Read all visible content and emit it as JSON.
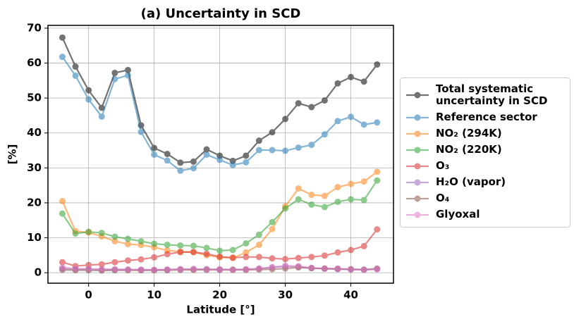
{
  "chart_data": {
    "type": "line",
    "title": "(a) Uncertainty in SCD",
    "xlabel": "Latitude [°]",
    "ylabel": "[%]",
    "x": [
      -4,
      -2,
      0,
      2,
      4,
      6,
      8,
      10,
      12,
      14,
      16,
      18,
      20,
      22,
      24,
      26,
      28,
      30,
      32,
      34,
      36,
      38,
      40,
      42,
      44
    ],
    "xlim": [
      -6.2,
      46.5
    ],
    "xticks": [
      0,
      10,
      20,
      30,
      40
    ],
    "ylim": [
      -3,
      70.8
    ],
    "yticks": [
      0,
      10,
      20,
      30,
      40,
      50,
      60,
      70
    ],
    "grid": true,
    "series": [
      {
        "name": "Total systematic uncertainty in SCD",
        "color": "#000000",
        "values": [
          67.3,
          59,
          52.2,
          47.2,
          57.2,
          58,
          42.2,
          35.7,
          34,
          31.5,
          31.8,
          35.3,
          33.5,
          32,
          33.5,
          37.8,
          40.2,
          44,
          48.5,
          47.4,
          49.3,
          54.2,
          56,
          54.7,
          59.6
        ]
      },
      {
        "name": "Reference sector",
        "color": "#1f77b4",
        "values": [
          61.8,
          56.4,
          49.6,
          44.7,
          55.4,
          56.5,
          40.3,
          33.8,
          32.1,
          29.2,
          29.9,
          33.8,
          32.3,
          30.8,
          31.6,
          35.1,
          35.1,
          34.9,
          35.8,
          36.6,
          39.6,
          43.4,
          44.6,
          42.4,
          43
        ]
      },
      {
        "name": "NO₂ (294K)",
        "color": "#ff7f0e",
        "values": [
          20.5,
          11.9,
          11.5,
          10.4,
          9,
          8.2,
          7.9,
          7.3,
          6.4,
          6,
          5.9,
          5,
          4.4,
          4.2,
          5.8,
          8,
          12.5,
          19,
          24.1,
          22.3,
          22,
          24.5,
          25.4,
          26.1,
          28.9
        ]
      },
      {
        "name": "NO₂ (220K)",
        "color": "#2ca02c",
        "values": [
          16.9,
          11.2,
          11.7,
          11.4,
          10.3,
          9.7,
          9,
          8.3,
          8,
          7.8,
          7.7,
          7.1,
          6.3,
          6.5,
          8.4,
          10.9,
          14.5,
          18.4,
          21,
          19.5,
          18.8,
          20.3,
          21,
          20.8,
          26.4
        ]
      },
      {
        "name": "O₃",
        "color": "#d62728",
        "values": [
          3,
          1.9,
          2.2,
          2.4,
          3,
          3.5,
          3.8,
          4.4,
          5.3,
          5.9,
          5.9,
          5.4,
          4.6,
          4.3,
          4.5,
          4.5,
          4.1,
          3.9,
          4.2,
          4.5,
          4.9,
          5.8,
          6.5,
          7.6,
          12.4
        ]
      },
      {
        "name": "H₂O (vapor)",
        "color": "#9467bd",
        "values": [
          1.2,
          1,
          1,
          0.9,
          0.9,
          0.9,
          0.8,
          0.8,
          0.9,
          1,
          1,
          1,
          1,
          0.9,
          1,
          1.2,
          1.5,
          1.8,
          1.7,
          1.3,
          1.1,
          1,
          0.9,
          0.8,
          1
        ]
      },
      {
        "name": "O₄",
        "color": "#8c564b",
        "values": [
          0.8,
          0.7,
          0.7,
          0.6,
          0.7,
          0.7,
          0.7,
          0.7,
          0.7,
          0.8,
          0.8,
          0.8,
          0.8,
          0.8,
          0.8,
          0.9,
          1,
          1.2,
          1.5,
          1.3,
          1.2,
          1.1,
          1,
          0.9,
          1.2
        ]
      },
      {
        "name": "Glyoxal",
        "color": "#e377c2",
        "values": [
          1.5,
          1.2,
          1.1,
          1,
          1,
          0.9,
          0.9,
          0.8,
          0.9,
          1,
          1.1,
          1,
          0.9,
          0.8,
          0.9,
          1.2,
          1.6,
          2,
          1.9,
          1.4,
          1.2,
          1.2,
          1,
          0.9,
          1
        ]
      }
    ]
  }
}
